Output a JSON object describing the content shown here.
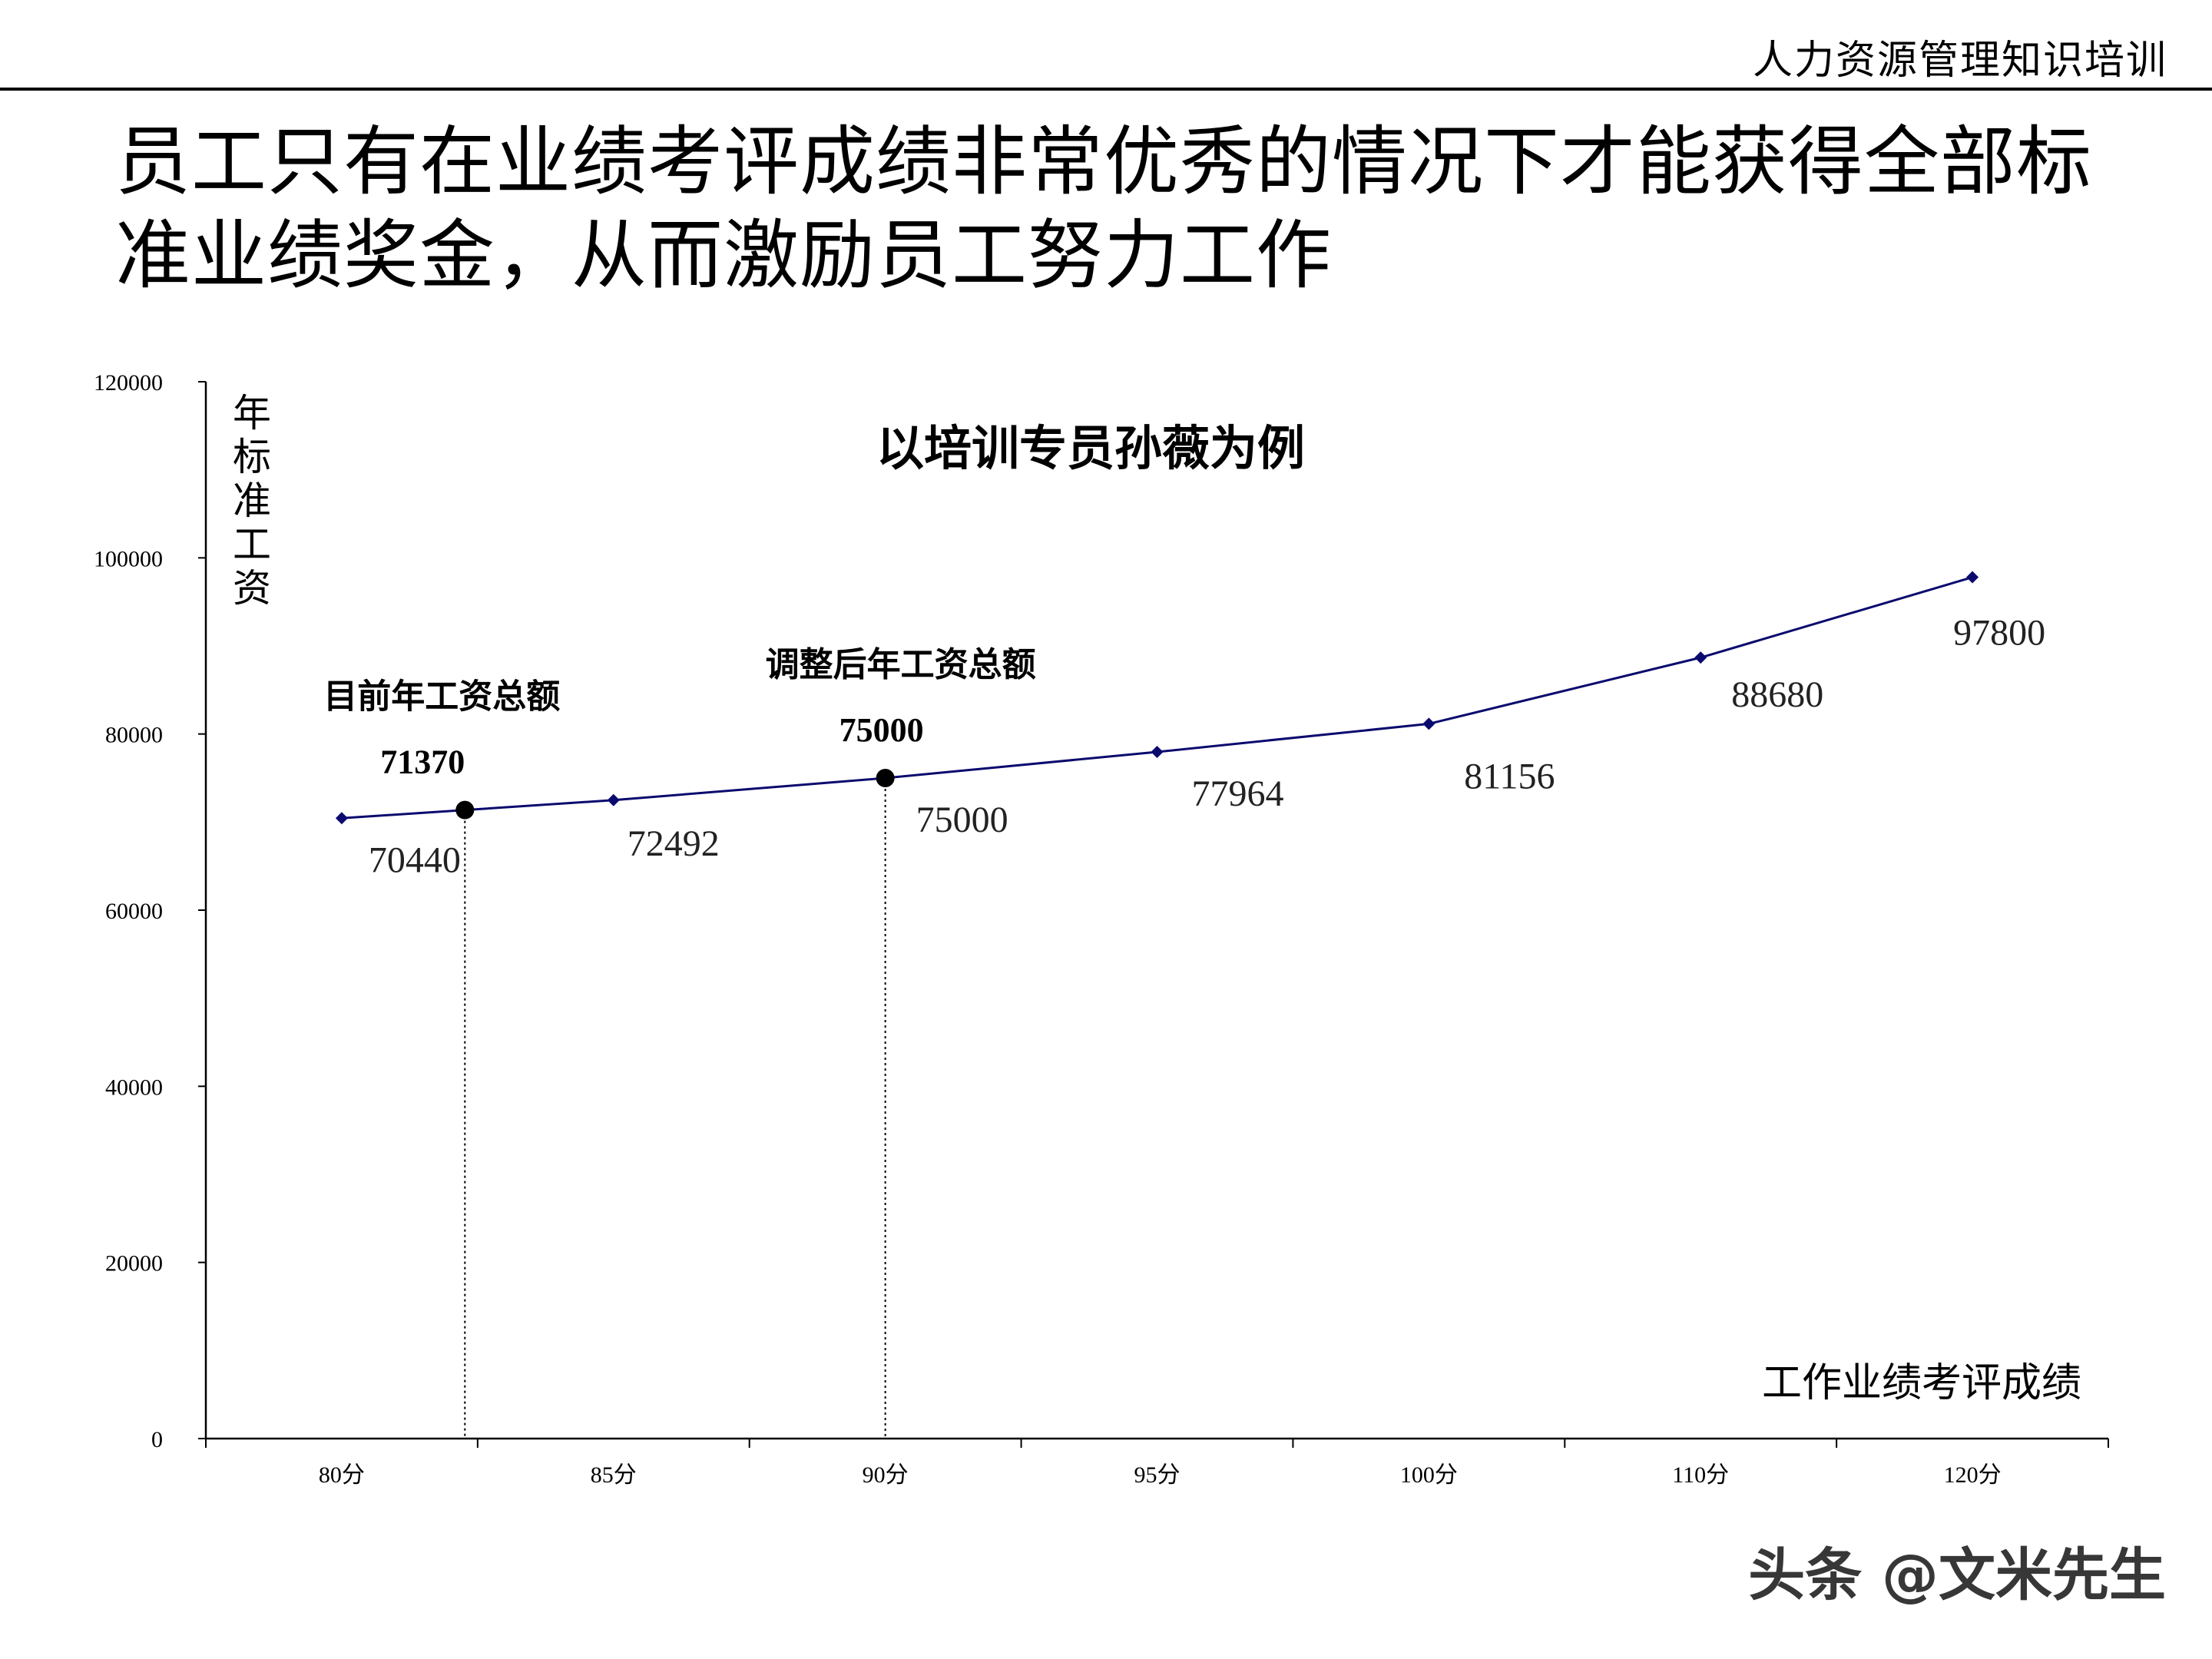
{
  "header": {
    "text": "人力资源管理知识培训"
  },
  "title": "员工只有在业绩考评成绩非常优秀的情况下才能获得全部标准业绩奖金，从而激励员工努力工作",
  "watermark": "头条 @文米先生",
  "chart_data": {
    "type": "line",
    "title": "以培训专员孙薇为例",
    "ylabel": "年标准工资",
    "xlabel": "工作业绩考评成绩",
    "ylim": [
      0,
      120000
    ],
    "yticks": [
      0,
      20000,
      40000,
      60000,
      80000,
      100000,
      120000
    ],
    "ytick_labels": [
      "0",
      "20000",
      "40000",
      "60000",
      "80000",
      "100000",
      "120000"
    ],
    "categories": [
      "80分",
      "85分",
      "90分",
      "95分",
      "100分",
      "110分",
      "120分"
    ],
    "values": [
      70440,
      72492,
      75000,
      77964,
      81156,
      88680,
      97800
    ],
    "data_labels": [
      "70440",
      "72492",
      "75000",
      "77964",
      "81156",
      "88680",
      "97800"
    ],
    "line_color": "#0a0a6e",
    "grid": false,
    "annotations": [
      {
        "label": "目前年工资总额",
        "value_label": "71370",
        "y": 71370,
        "x_between": [
          "80分",
          "85分"
        ]
      },
      {
        "label": "调整后年工资总额",
        "value_label": "75000",
        "y": 75000,
        "x_at": "90分"
      }
    ]
  }
}
